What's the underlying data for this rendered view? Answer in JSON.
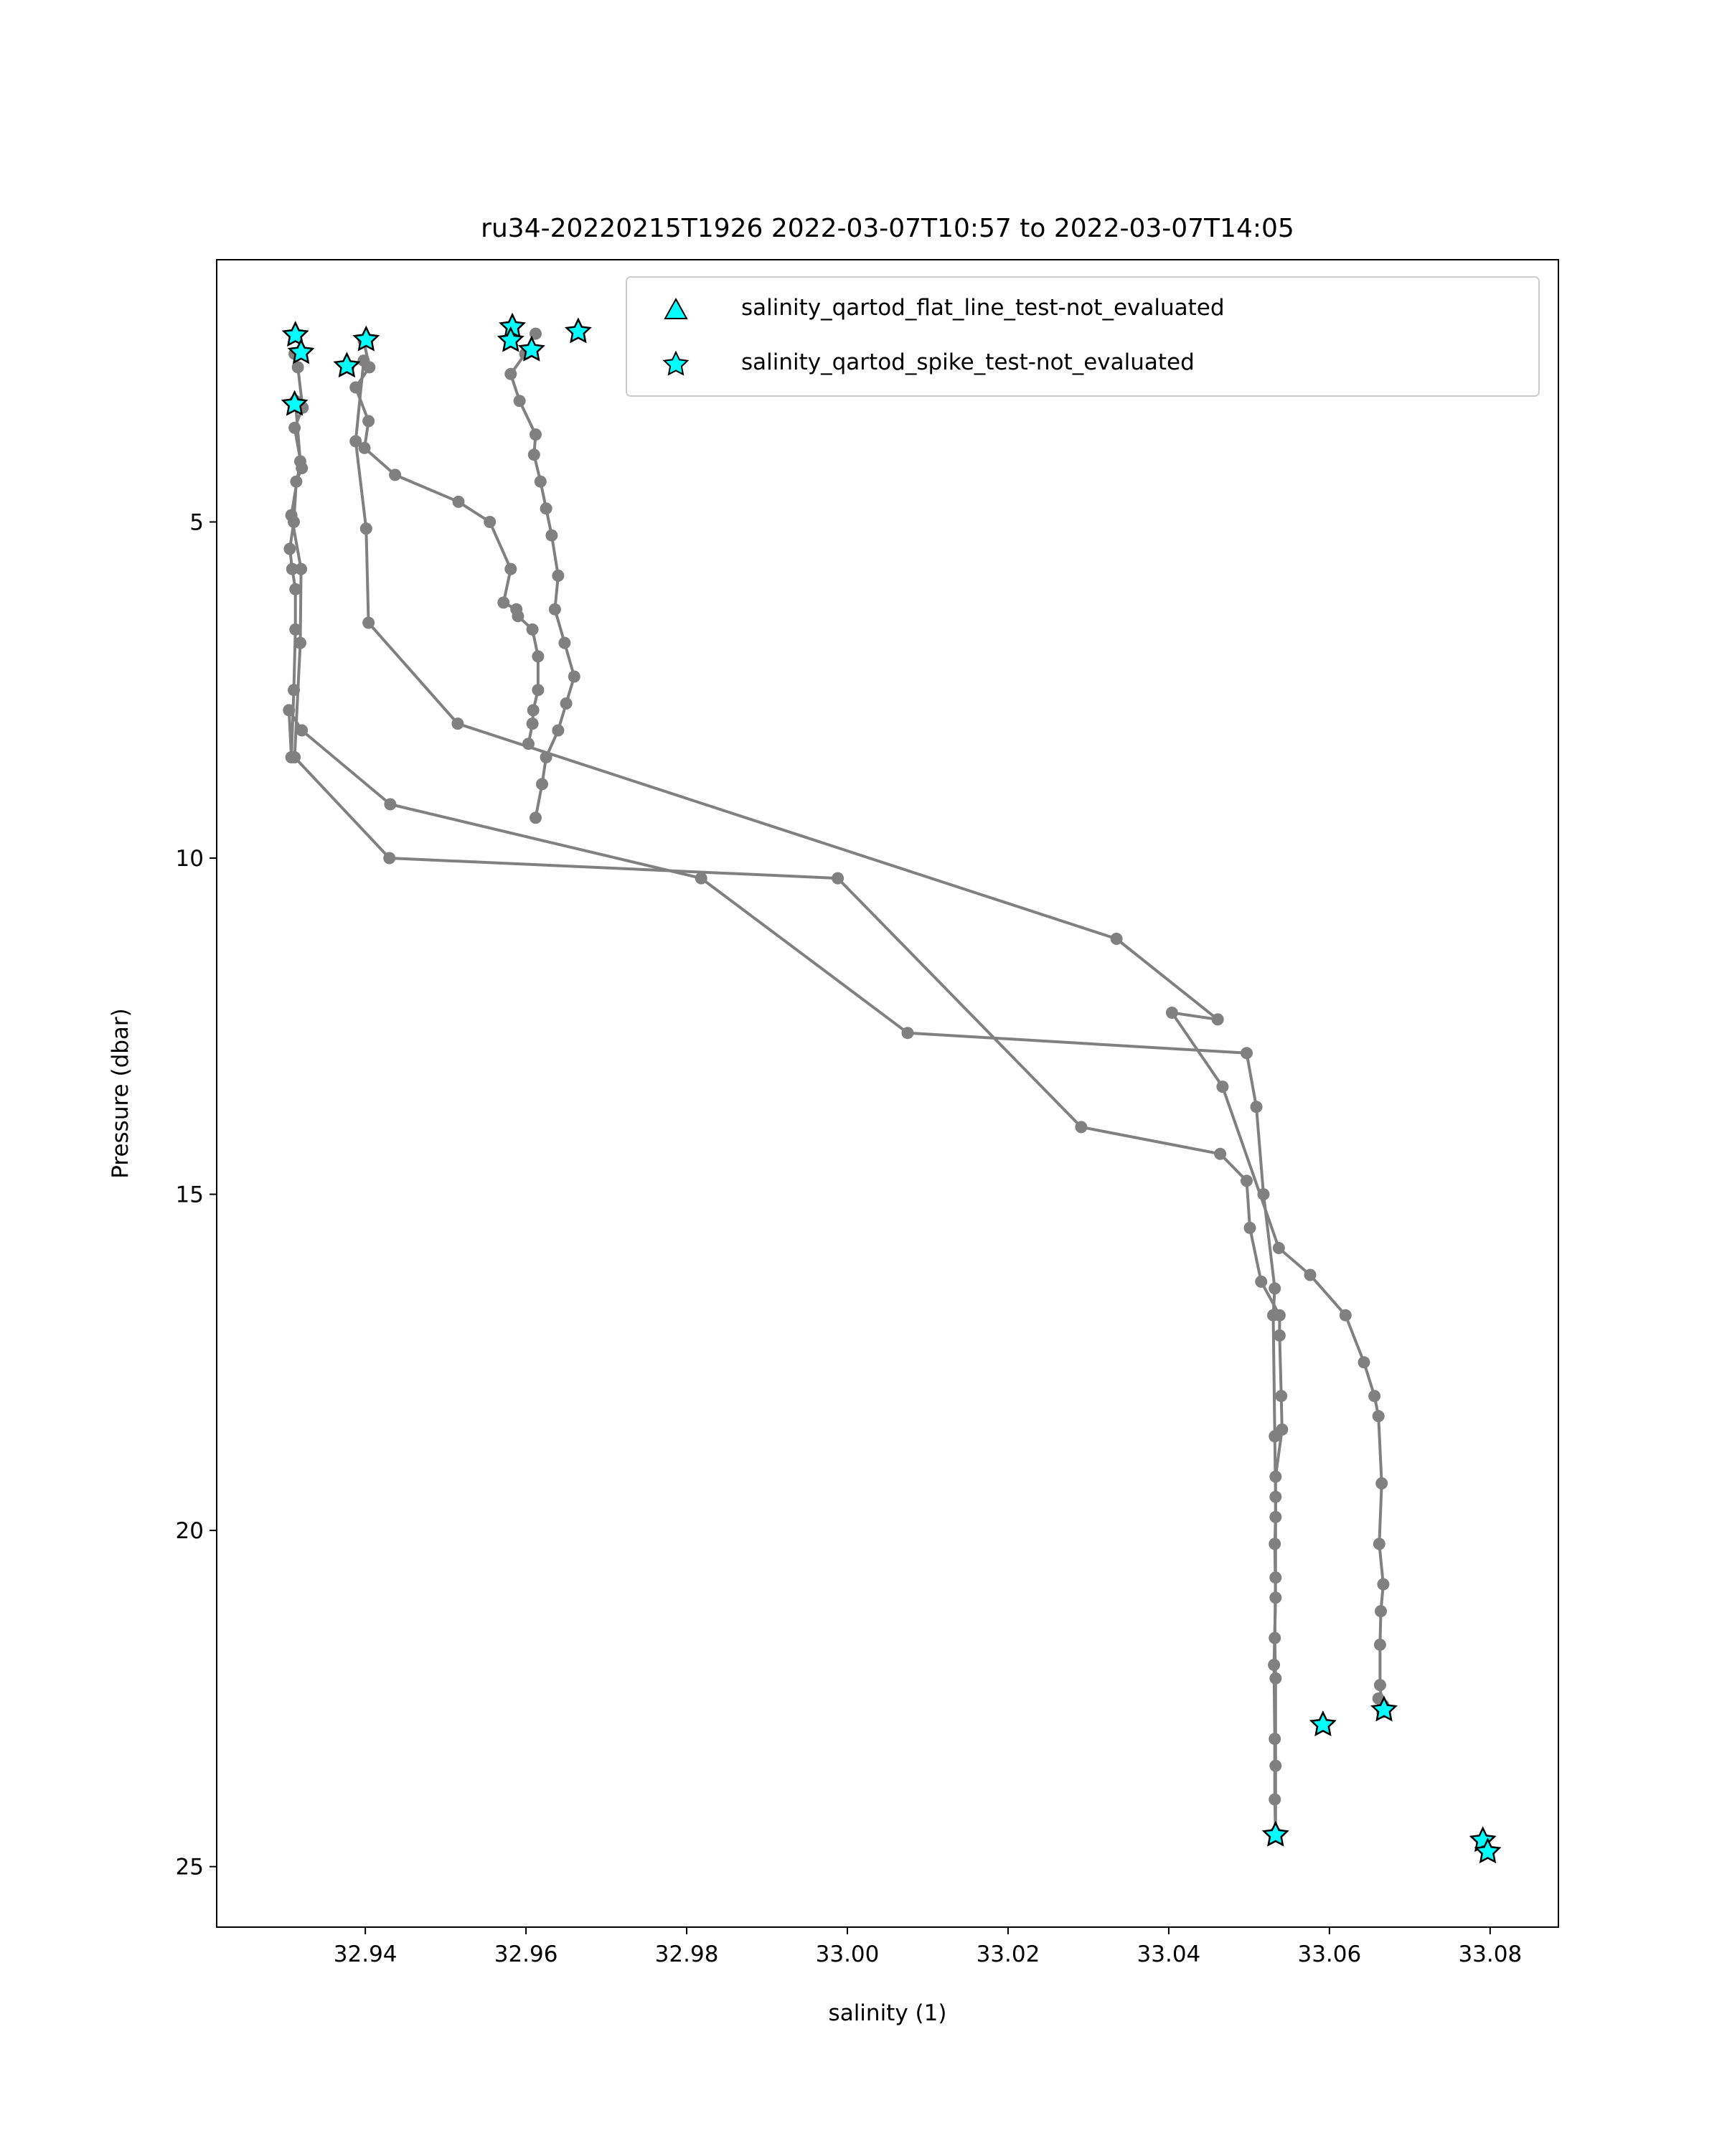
{
  "chart_data": {
    "type": "line",
    "title": "ru34-20220215T1926 2022-03-07T10:57 to 2022-03-07T14:05",
    "xlabel": "salinity (1)",
    "ylabel": "Pressure (dbar)",
    "xlim": [
      32.9215,
      33.0885
    ],
    "ylim": [
      25.9,
      1.1
    ],
    "y_inverted": true,
    "x_ticks": [
      32.94,
      32.96,
      32.98,
      33.0,
      33.02,
      33.04,
      33.06,
      33.08
    ],
    "x_tick_labels": [
      "32.94",
      "32.96",
      "32.98",
      "33.00",
      "33.02",
      "33.04",
      "33.06",
      "33.08"
    ],
    "y_ticks": [
      5,
      10,
      15,
      20,
      25
    ],
    "y_tick_labels": [
      "5",
      "10",
      "15",
      "20",
      "25"
    ],
    "grid": false,
    "legend": {
      "location": "top-right",
      "entries": [
        {
          "label": "salinity_qartod_flat_line_test-not_evaluated",
          "marker": "triangle"
        },
        {
          "label": "salinity_qartod_spike_test-not_evaluated",
          "marker": "star"
        }
      ]
    },
    "colors": {
      "profile_line": "#808080",
      "flag_marker_fill": "#00ffff",
      "flag_marker_edge": "#000000"
    },
    "series": [
      {
        "x": [
          32.9312,
          32.9316,
          32.9322,
          32.9312,
          32.9321,
          32.9314,
          32.9311,
          32.9306,
          32.9309,
          32.9313,
          32.9313,
          32.9311,
          32.9308,
          32.9305,
          32.9321,
          32.9431,
          32.9818,
          33.0075,
          33.0497,
          33.0509,
          33.0518,
          33.0532,
          33.053,
          33.0532,
          33.0533,
          33.0533,
          33.0532,
          33.0533,
          33.0533,
          33.0533
        ],
        "y": [
          2.5,
          2.7,
          3.3,
          3.6,
          4.2,
          4.4,
          5.0,
          5.4,
          5.7,
          6.0,
          6.6,
          7.5,
          8.5,
          7.8,
          8.1,
          9.2,
          10.3,
          12.6,
          12.9,
          13.7,
          15.0,
          16.4,
          16.8,
          18.6,
          19.5,
          20.7,
          21.6,
          22.2,
          23.5,
          24.5
        ]
      },
      {
        "x": [
          32.9313,
          32.9319,
          32.9308,
          32.932,
          32.9319,
          32.9312,
          32.943,
          32.9988,
          33.0291,
          33.0464,
          33.0497,
          33.0501,
          33.0515,
          33.0538,
          33.0538,
          33.054,
          33.0541,
          33.0533,
          33.0533,
          33.0532,
          33.0533,
          33.0531,
          33.0532,
          33.0532,
          33.0533
        ],
        "y": [
          3.2,
          4.1,
          4.9,
          5.7,
          6.8,
          8.5,
          10.0,
          10.3,
          14.0,
          14.4,
          14.8,
          15.5,
          16.3,
          16.8,
          17.1,
          18.0,
          18.5,
          19.2,
          19.8,
          20.2,
          21.0,
          22.0,
          23.1,
          24.0,
          24.5
        ]
      },
      {
        "x": [
          32.9379,
          32.9398,
          32.9388,
          32.9401,
          32.9404,
          32.9515,
          33.0335,
          33.0461,
          33.0404,
          33.0467,
          33.0537,
          33.0576,
          33.062,
          33.0643,
          33.0656,
          33.0661,
          33.0665,
          33.0662,
          33.0667,
          33.0664,
          33.0663,
          33.0663,
          33.0666,
          33.0661,
          33.0667
        ],
        "y": [
          2.7,
          2.6,
          3.8,
          5.1,
          6.5,
          8.0,
          11.2,
          12.4,
          12.3,
          13.4,
          15.8,
          16.2,
          16.8,
          17.5,
          18.0,
          18.3,
          19.3,
          20.2,
          20.8,
          21.2,
          21.7,
          22.3,
          22.7,
          22.5,
          22.6
        ]
      },
      {
        "x": [
          32.9398,
          32.9405,
          32.9388,
          32.9404,
          32.9399,
          32.9437,
          32.9516,
          32.9555,
          32.9581,
          32.9572,
          32.9588,
          32.959,
          32.9608,
          32.9615,
          32.9615,
          32.9609,
          32.9608,
          32.9603
        ],
        "y": [
          2.3,
          2.7,
          3.0,
          3.5,
          3.9,
          4.3,
          4.7,
          5.0,
          5.7,
          6.2,
          6.3,
          6.4,
          6.6,
          7.0,
          7.5,
          7.8,
          8.0,
          8.3
        ]
      },
      {
        "x": [
          32.9612,
          32.9599,
          32.9581,
          32.9592,
          32.9612,
          32.961,
          32.9618,
          32.9625,
          32.9632,
          32.964,
          32.9636,
          32.9648,
          32.966,
          32.965,
          32.964,
          32.9625,
          32.962,
          32.9612
        ],
        "y": [
          2.2,
          2.5,
          2.8,
          3.2,
          3.7,
          4.0,
          4.4,
          4.8,
          5.2,
          5.8,
          6.3,
          6.8,
          7.3,
          7.7,
          8.1,
          8.5,
          8.9,
          9.4
        ]
      }
    ],
    "flagged_points": {
      "flat_line_test": [],
      "spike_test": [
        {
          "x": 32.9313,
          "y": 2.22
        },
        {
          "x": 32.932,
          "y": 2.48
        },
        {
          "x": 32.9312,
          "y": 3.25
        },
        {
          "x": 32.9377,
          "y": 2.68
        },
        {
          "x": 32.9401,
          "y": 2.29
        },
        {
          "x": 32.9583,
          "y": 2.1
        },
        {
          "x": 32.9581,
          "y": 2.3
        },
        {
          "x": 32.9607,
          "y": 2.44
        },
        {
          "x": 32.9665,
          "y": 2.17
        },
        {
          "x": 33.0533,
          "y": 24.53
        },
        {
          "x": 33.0592,
          "y": 22.89
        },
        {
          "x": 33.0668,
          "y": 22.67
        },
        {
          "x": 33.0791,
          "y": 24.61
        },
        {
          "x": 33.0797,
          "y": 24.78
        }
      ]
    }
  }
}
